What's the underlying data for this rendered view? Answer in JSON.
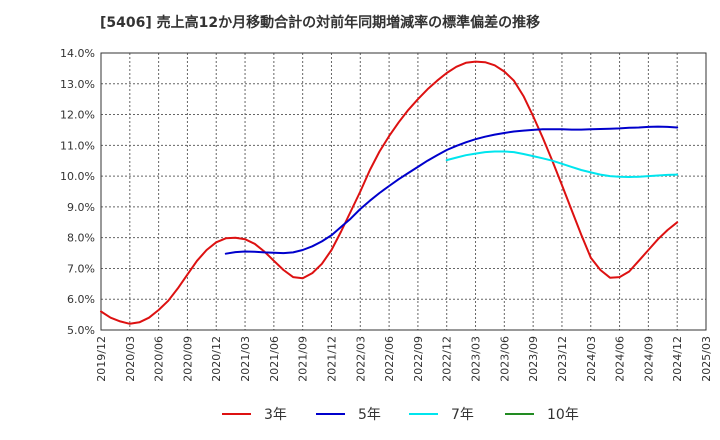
{
  "chart_data": {
    "type": "line",
    "title": "[5406]  売上高12か月移動合計の対前年同期増減率の標準偏差の推移",
    "x_ticks": [
      "2019/12",
      "2020/03",
      "2020/06",
      "2020/09",
      "2020/12",
      "2021/03",
      "2021/06",
      "2021/09",
      "2021/12",
      "2022/03",
      "2022/06",
      "2022/09",
      "2022/12",
      "2023/03",
      "2023/06",
      "2023/09",
      "2023/12",
      "2024/03",
      "2024/06",
      "2024/09",
      "2024/12",
      "2025/03"
    ],
    "y_ticks": [
      "5.0%",
      "6.0%",
      "7.0%",
      "8.0%",
      "9.0%",
      "10.0%",
      "11.0%",
      "12.0%",
      "13.0%",
      "14.0%"
    ],
    "ylim": [
      5.0,
      14.0
    ],
    "grid": true,
    "legend_position": "bottom",
    "series": [
      {
        "name": "3年",
        "color": "#dd1111",
        "x": [
          "2019/12",
          "2020/01",
          "2020/02",
          "2020/03",
          "2020/04",
          "2020/05",
          "2020/06",
          "2020/07",
          "2020/08",
          "2020/09",
          "2020/10",
          "2020/11",
          "2020/12",
          "2021/01",
          "2021/02",
          "2021/03",
          "2021/04",
          "2021/05",
          "2021/06",
          "2021/07",
          "2021/08",
          "2021/09",
          "2021/10",
          "2021/11",
          "2021/12",
          "2022/01",
          "2022/02",
          "2022/03",
          "2022/04",
          "2022/05",
          "2022/06",
          "2022/07",
          "2022/08",
          "2022/09",
          "2022/10",
          "2022/11",
          "2022/12",
          "2023/01",
          "2023/02",
          "2023/03",
          "2023/04",
          "2023/05",
          "2023/06",
          "2023/07",
          "2023/08",
          "2023/09",
          "2023/10",
          "2023/11",
          "2023/12",
          "2024/01",
          "2024/02",
          "2024/03",
          "2024/04",
          "2024/05",
          "2024/06",
          "2024/07",
          "2024/08",
          "2024/09",
          "2024/10",
          "2024/11",
          "2024/12"
        ],
        "values": [
          5.6,
          5.4,
          5.28,
          5.2,
          5.25,
          5.4,
          5.65,
          5.95,
          6.35,
          6.8,
          7.25,
          7.6,
          7.85,
          7.98,
          8.0,
          7.95,
          7.8,
          7.55,
          7.25,
          6.95,
          6.72,
          6.68,
          6.85,
          7.15,
          7.6,
          8.2,
          8.85,
          9.5,
          10.2,
          10.8,
          11.3,
          11.75,
          12.15,
          12.5,
          12.82,
          13.1,
          13.35,
          13.55,
          13.68,
          13.72,
          13.7,
          13.6,
          13.4,
          13.1,
          12.6,
          11.95,
          11.25,
          10.5,
          9.7,
          8.9,
          8.1,
          7.35,
          6.95,
          6.7,
          6.72,
          6.9,
          7.25,
          7.6,
          7.95,
          8.25,
          8.5
        ]
      },
      {
        "name": "5年",
        "color": "#0000cc",
        "x": [
          "2021/01",
          "2021/02",
          "2021/03",
          "2021/04",
          "2021/05",
          "2021/06",
          "2021/07",
          "2021/08",
          "2021/09",
          "2021/10",
          "2021/11",
          "2021/12",
          "2022/01",
          "2022/02",
          "2022/03",
          "2022/04",
          "2022/05",
          "2022/06",
          "2022/07",
          "2022/08",
          "2022/09",
          "2022/10",
          "2022/11",
          "2022/12",
          "2023/01",
          "2023/02",
          "2023/03",
          "2023/04",
          "2023/05",
          "2023/06",
          "2023/07",
          "2023/08",
          "2023/09",
          "2023/10",
          "2023/11",
          "2023/12",
          "2024/01",
          "2024/02",
          "2024/03",
          "2024/04",
          "2024/05",
          "2024/06",
          "2024/07",
          "2024/08",
          "2024/09",
          "2024/10",
          "2024/11",
          "2024/12"
        ],
        "values": [
          7.48,
          7.53,
          7.55,
          7.54,
          7.52,
          7.51,
          7.5,
          7.52,
          7.6,
          7.72,
          7.88,
          8.08,
          8.35,
          8.62,
          8.93,
          9.2,
          9.45,
          9.68,
          9.9,
          10.1,
          10.3,
          10.5,
          10.68,
          10.85,
          10.98,
          11.1,
          11.2,
          11.28,
          11.35,
          11.4,
          11.45,
          11.48,
          11.5,
          11.52,
          11.52,
          11.52,
          11.51,
          11.51,
          11.52,
          11.53,
          11.54,
          11.55,
          11.57,
          11.58,
          11.6,
          11.61,
          11.6,
          11.58
        ]
      },
      {
        "name": "7年",
        "color": "#00e5ee",
        "x": [
          "2022/12",
          "2023/01",
          "2023/02",
          "2023/03",
          "2023/04",
          "2023/05",
          "2023/06",
          "2023/07",
          "2023/08",
          "2023/09",
          "2023/10",
          "2023/11",
          "2023/12",
          "2024/01",
          "2024/02",
          "2024/03",
          "2024/04",
          "2024/05",
          "2024/06",
          "2024/07",
          "2024/08",
          "2024/09",
          "2024/10",
          "2024/11",
          "2024/12"
        ],
        "values": [
          10.52,
          10.6,
          10.68,
          10.73,
          10.78,
          10.8,
          10.8,
          10.78,
          10.72,
          10.65,
          10.58,
          10.5,
          10.4,
          10.3,
          10.2,
          10.12,
          10.05,
          10.0,
          9.98,
          9.97,
          9.98,
          10.0,
          10.02,
          10.04,
          10.05
        ]
      },
      {
        "name": "10年",
        "color": "#228b22",
        "x": [],
        "values": []
      }
    ]
  }
}
